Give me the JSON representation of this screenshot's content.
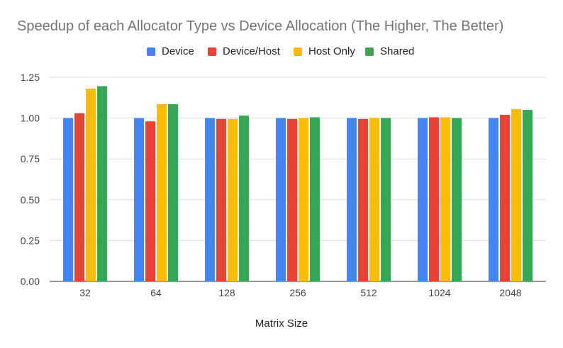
{
  "chart_data": {
    "type": "bar",
    "title": "Speedup of each Allocator Type vs Device Allocation (The Higher, The Better)",
    "xlabel": "Matrix Size",
    "ylabel": "",
    "categories": [
      "32",
      "64",
      "128",
      "256",
      "512",
      "1024",
      "2048"
    ],
    "series": [
      {
        "name": "Device",
        "color": "#4285f4",
        "values": [
          1.0,
          1.0,
          1.0,
          1.0,
          1.0,
          1.0,
          1.0
        ]
      },
      {
        "name": "Device/Host",
        "color": "#ea4335",
        "values": [
          1.03,
          0.98,
          0.995,
          0.995,
          0.995,
          1.005,
          1.02
        ]
      },
      {
        "name": "Host Only",
        "color": "#fbbc04",
        "values": [
          1.18,
          1.085,
          0.995,
          1.0,
          1.0,
          1.005,
          1.055
        ]
      },
      {
        "name": "Shared",
        "color": "#34a853",
        "values": [
          1.195,
          1.085,
          1.015,
          1.005,
          1.0,
          1.0,
          1.05
        ]
      }
    ],
    "ylim": [
      0,
      1.25
    ],
    "yticks": [
      "0.00",
      "0.25",
      "0.50",
      "0.75",
      "1.00",
      "1.25"
    ],
    "grid": true,
    "legend_position": "top"
  }
}
